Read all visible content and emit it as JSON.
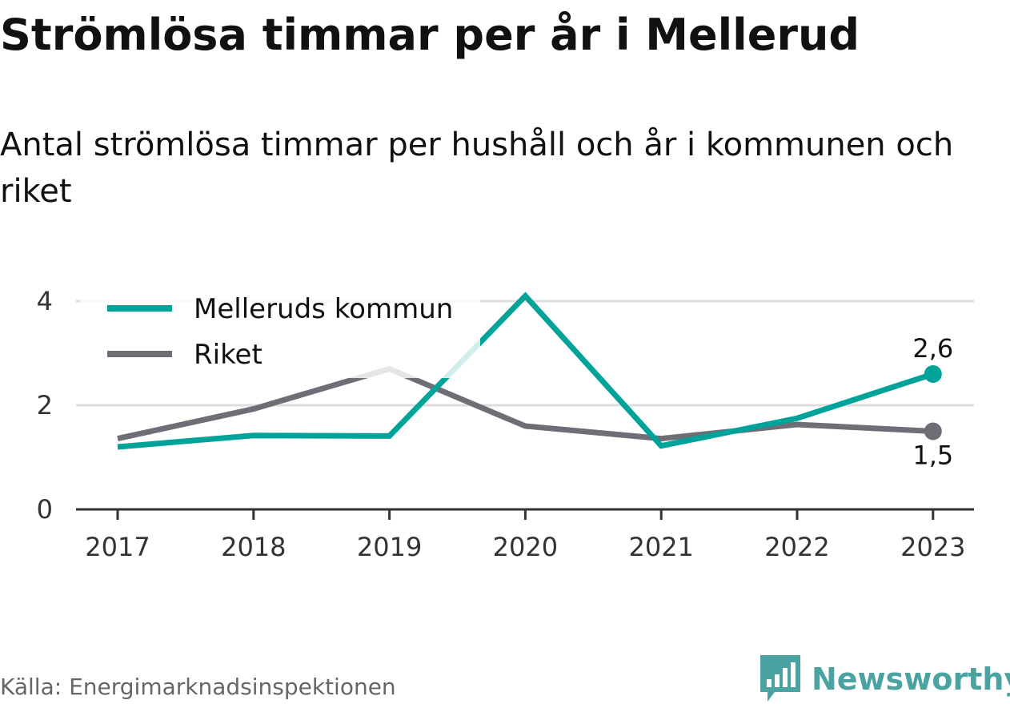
{
  "title": "Strömlösa timmar per år i Mellerud",
  "subtitle": "Antal strömlösa timmar per hushåll och år i kommunen och riket",
  "source": "Källa: Energimarknadsinspektionen",
  "brand": {
    "name": "Newsworthy",
    "logo_icon": "bar-chart-speech-bubble-icon",
    "color": "#4aa3a0"
  },
  "chart_data": {
    "type": "line",
    "categories": [
      "2017",
      "2018",
      "2019",
      "2020",
      "2021",
      "2022",
      "2023"
    ],
    "y_ticks": [
      "0",
      "2",
      "4"
    ],
    "ylim": [
      0,
      4
    ],
    "grid": true,
    "legend_position": "top-left",
    "series": [
      {
        "name": "Melleruds kommun",
        "color": "#00a39a",
        "values": [
          1.2,
          1.42,
          1.41,
          4.1,
          1.22,
          1.75,
          2.6
        ],
        "end_label": "2,6"
      },
      {
        "name": "Riket",
        "color": "#6e6e76",
        "values": [
          1.36,
          1.93,
          2.7,
          1.6,
          1.36,
          1.63,
          1.5
        ],
        "end_label": "1,5"
      }
    ]
  }
}
